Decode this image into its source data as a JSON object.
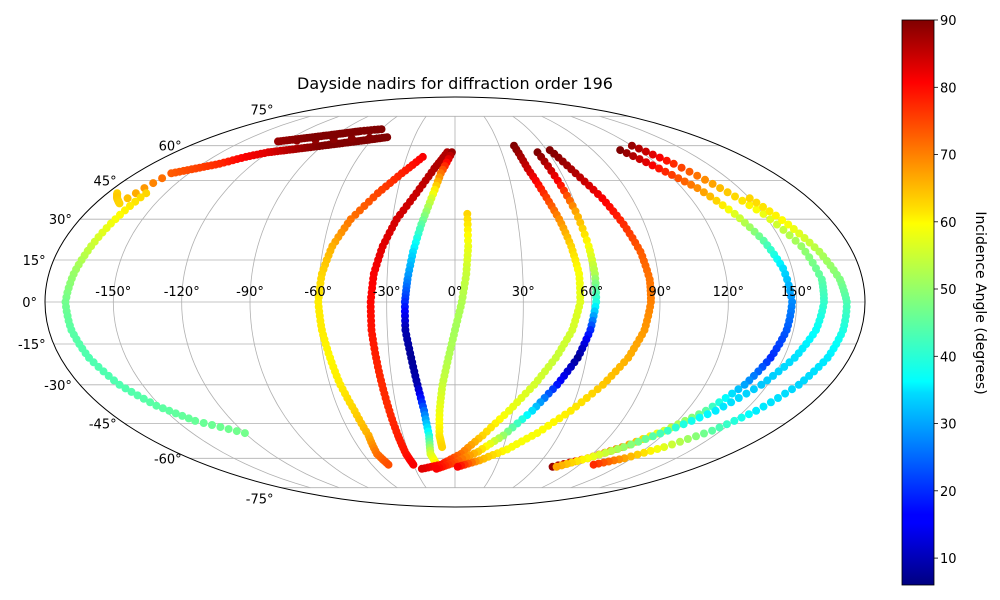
{
  "chart_data": {
    "type": "scatter",
    "projection": "mollweide",
    "title": "Dayside nadirs for diffraction order 196",
    "xlabel": "",
    "ylabel": "",
    "lon_ticks": [
      "-150°",
      "-120°",
      "-90°",
      "-60°",
      "-30°",
      "0°",
      "30°",
      "60°",
      "90°",
      "120°",
      "150°"
    ],
    "lat_ticks": [
      "75°",
      "60°",
      "45°",
      "30°",
      "15°",
      "0°",
      "-15°",
      "-30°",
      "-45°",
      "-60°",
      "-75°"
    ],
    "grid": true,
    "colormap": "jet",
    "colorbar": {
      "label": "Incidence Angle (degrees)",
      "range": [
        6,
        90
      ],
      "ticks": [
        "10",
        "20",
        "30",
        "40",
        "50",
        "60",
        "70",
        "80",
        "90"
      ]
    },
    "series": [
      {
        "points": [
          [
            -175,
            40,
            62
          ],
          [
            -172,
            38,
            63
          ],
          [
            -168,
            36,
            62
          ],
          [
            -160,
            48,
            72
          ],
          [
            -150,
            50,
            74
          ],
          [
            -140,
            52,
            76
          ],
          [
            -130,
            55,
            80
          ],
          [
            -120,
            57,
            82
          ],
          [
            -110,
            58,
            85
          ],
          [
            -100,
            59,
            88
          ],
          [
            -90,
            60,
            90
          ],
          [
            -80,
            61,
            90
          ],
          [
            -70,
            62,
            90
          ],
          [
            -60,
            63,
            90
          ],
          [
            -50,
            64,
            90
          ],
          [
            -125,
            62,
            88
          ],
          [
            -115,
            63,
            89
          ],
          [
            -105,
            64,
            90
          ],
          [
            -95,
            65,
            90
          ],
          [
            -85,
            66,
            90
          ],
          [
            -75,
            67,
            90
          ],
          [
            -60,
            68,
            90
          ]
        ]
      },
      {
        "points": [
          [
            -160,
            40,
            62
          ],
          [
            -163,
            30,
            58
          ],
          [
            -166,
            20,
            54
          ],
          [
            -169,
            10,
            50
          ],
          [
            -171,
            0,
            47
          ],
          [
            -170,
            -10,
            45
          ],
          [
            -167,
            -20,
            44
          ],
          [
            -161,
            -30,
            44
          ],
          [
            -152,
            -38,
            45
          ],
          [
            -140,
            -44,
            46
          ],
          [
            -120,
            -49,
            47
          ]
        ]
      },
      {
        "points": [
          [
            -20,
            55,
            80
          ],
          [
            -30,
            48,
            77
          ],
          [
            -40,
            40,
            74
          ],
          [
            -50,
            30,
            70
          ],
          [
            -56,
            20,
            65
          ],
          [
            -59,
            10,
            62
          ],
          [
            -60,
            0,
            60
          ],
          [
            -59,
            -10,
            60
          ],
          [
            -57,
            -20,
            59
          ],
          [
            -55,
            -30,
            60
          ],
          [
            -52,
            -40,
            62
          ],
          [
            -50,
            -50,
            65
          ],
          [
            -51,
            -58,
            70
          ],
          [
            -48,
            -63,
            73
          ]
        ]
      },
      {
        "points": [
          [
            -5,
            57,
            86
          ],
          [
            -12,
            50,
            86
          ],
          [
            -20,
            40,
            84
          ],
          [
            -28,
            30,
            83
          ],
          [
            -33,
            20,
            82
          ],
          [
            -36,
            10,
            80
          ],
          [
            -37,
            0,
            79
          ],
          [
            -37,
            -10,
            78
          ],
          [
            -36,
            -20,
            77
          ],
          [
            -35,
            -30,
            76
          ],
          [
            -34,
            -40,
            76
          ],
          [
            -33,
            -50,
            77
          ],
          [
            -32,
            -58,
            78
          ],
          [
            -30,
            -63,
            80
          ]
        ]
      },
      {
        "points": [
          [
            -2,
            57,
            88
          ],
          [
            -8,
            48,
            70
          ],
          [
            -12,
            38,
            55
          ],
          [
            -16,
            28,
            45
          ],
          [
            -19,
            18,
            35
          ],
          [
            -21,
            8,
            28
          ],
          [
            -22,
            0,
            20
          ],
          [
            -22,
            -10,
            10
          ],
          [
            -20,
            -20,
            8
          ],
          [
            -18,
            -30,
            10
          ],
          [
            -16,
            -40,
            25
          ],
          [
            -15,
            -50,
            40
          ],
          [
            -16,
            -58,
            55
          ],
          [
            -13,
            -63,
            60
          ]
        ]
      },
      {
        "points": [
          [
            6,
            32,
            62
          ],
          [
            6,
            20,
            57
          ],
          [
            5,
            10,
            54
          ],
          [
            3,
            0,
            52
          ],
          [
            0,
            -10,
            51
          ],
          [
            -3,
            -20,
            52
          ],
          [
            -6,
            -30,
            54
          ],
          [
            -8,
            -40,
            57
          ],
          [
            -9,
            -50,
            60
          ],
          [
            -8,
            -55,
            62
          ]
        ]
      },
      {
        "points": [
          [
            40,
            60,
            90
          ],
          [
            42,
            50,
            84
          ],
          [
            46,
            40,
            76
          ],
          [
            50,
            30,
            68
          ],
          [
            53,
            20,
            62
          ],
          [
            55,
            10,
            58
          ],
          [
            55,
            0,
            56
          ],
          [
            52,
            -10,
            55
          ],
          [
            46,
            -20,
            54
          ],
          [
            38,
            -30,
            55
          ],
          [
            28,
            -40,
            57
          ],
          [
            16,
            -50,
            62
          ],
          [
            4,
            -58,
            70
          ],
          [
            -10,
            -63,
            78
          ],
          [
            -25,
            -65,
            82
          ]
        ]
      },
      {
        "points": [
          [
            53,
            57,
            90
          ],
          [
            56,
            45,
            80
          ],
          [
            59,
            33,
            66
          ],
          [
            61,
            20,
            58
          ],
          [
            62,
            10,
            52
          ],
          [
            62,
            0,
            40
          ],
          [
            60,
            -10,
            20
          ],
          [
            56,
            -20,
            8
          ],
          [
            49,
            -30,
            18
          ],
          [
            40,
            -40,
            35
          ],
          [
            28,
            -50,
            50
          ],
          [
            15,
            -57,
            63
          ],
          [
            0,
            -62,
            73
          ],
          [
            -14,
            -65,
            80
          ]
        ]
      },
      {
        "points": [
          [
            62,
            58,
            90
          ],
          [
            68,
            48,
            86
          ],
          [
            75,
            38,
            80
          ],
          [
            80,
            28,
            76
          ],
          [
            84,
            18,
            72
          ],
          [
            86,
            8,
            70
          ],
          [
            86,
            0,
            69
          ],
          [
            84,
            -10,
            67
          ],
          [
            79,
            -20,
            65
          ],
          [
            71,
            -30,
            63
          ],
          [
            60,
            -40,
            60
          ],
          [
            47,
            -49,
            58
          ],
          [
            33,
            -56,
            58
          ],
          [
            17,
            -61,
            65
          ],
          [
            2,
            -64,
            80
          ]
        ]
      },
      {
        "points": [
          [
            108,
            58,
            90
          ],
          [
            118,
            50,
            78
          ],
          [
            128,
            42,
            68
          ],
          [
            136,
            32,
            56
          ],
          [
            142,
            22,
            45
          ],
          [
            146,
            12,
            35
          ],
          [
            148,
            0,
            28
          ],
          [
            147,
            -10,
            24
          ],
          [
            144,
            -20,
            20
          ],
          [
            139,
            -30,
            30
          ],
          [
            130,
            -40,
            45
          ],
          [
            118,
            -48,
            55
          ],
          [
            104,
            -55,
            68
          ],
          [
            90,
            -60,
            78
          ],
          [
            72,
            -64,
            88
          ]
        ]
      },
      {
        "points": [
          [
            120,
            60,
            88
          ],
          [
            130,
            52,
            76
          ],
          [
            140,
            42,
            64
          ],
          [
            150,
            32,
            57
          ],
          [
            158,
            20,
            50
          ],
          [
            162,
            8,
            45
          ],
          [
            162,
            0,
            42
          ],
          [
            160,
            -10,
            38
          ],
          [
            155,
            -20,
            35
          ],
          [
            147,
            -30,
            33
          ],
          [
            135,
            -40,
            36
          ],
          [
            120,
            -48,
            42
          ],
          [
            105,
            -55,
            50
          ],
          [
            90,
            -60,
            58
          ],
          [
            75,
            -64,
            66
          ]
        ]
      },
      {
        "points": [
          [
            150,
            38,
            62
          ],
          [
            158,
            28,
            58
          ],
          [
            165,
            18,
            52
          ],
          [
            170,
            8,
            48
          ],
          [
            172,
            0,
            44
          ],
          [
            172,
            -10,
            40
          ],
          [
            170,
            -20,
            36
          ],
          [
            165,
            -30,
            34
          ],
          [
            156,
            -40,
            36
          ],
          [
            145,
            -48,
            45
          ],
          [
            130,
            -55,
            56
          ],
          [
            115,
            -60,
            66
          ],
          [
            100,
            -63,
            76
          ]
        ]
      }
    ]
  }
}
